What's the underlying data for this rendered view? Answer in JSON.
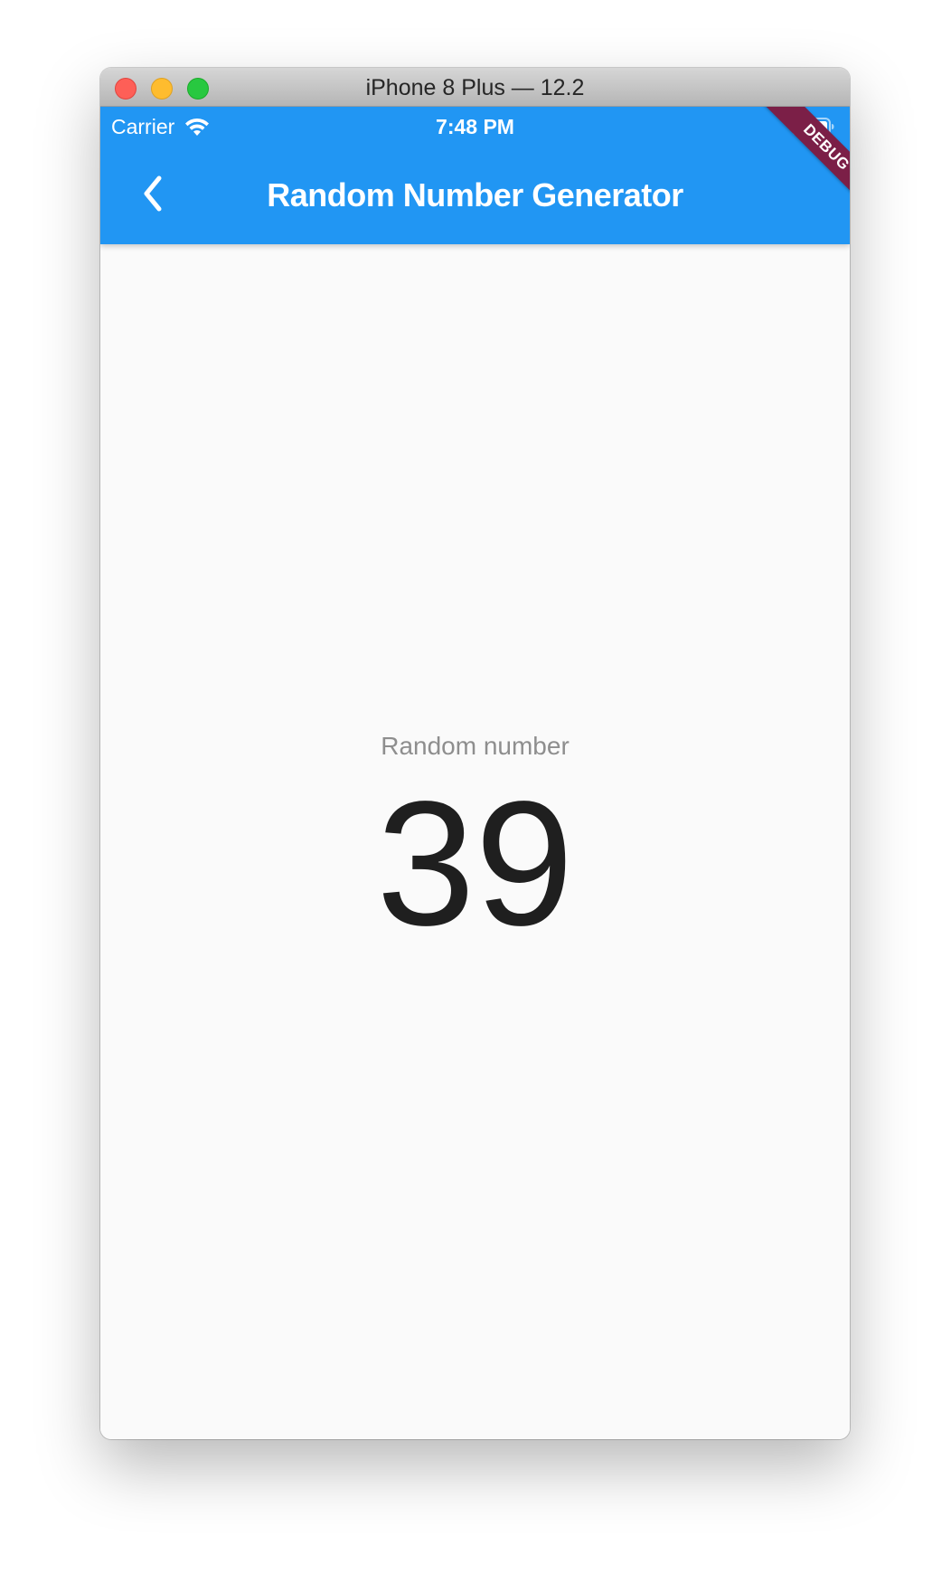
{
  "window": {
    "title": "iPhone 8 Plus — 12.2"
  },
  "status_bar": {
    "carrier": "Carrier",
    "time": "7:48 PM"
  },
  "app_bar": {
    "title": "Random Number Generator",
    "back_icon": "chevron-left-icon",
    "color": "#2196f3"
  },
  "debug_banner": {
    "label": "DEBUG",
    "color": "#7b1f47"
  },
  "content": {
    "label": "Random number",
    "value": "39"
  },
  "colors": {
    "traffic_close": "#fe5f57",
    "traffic_minimize": "#febc2e",
    "traffic_maximize": "#28c840",
    "background": "#fafafa"
  }
}
